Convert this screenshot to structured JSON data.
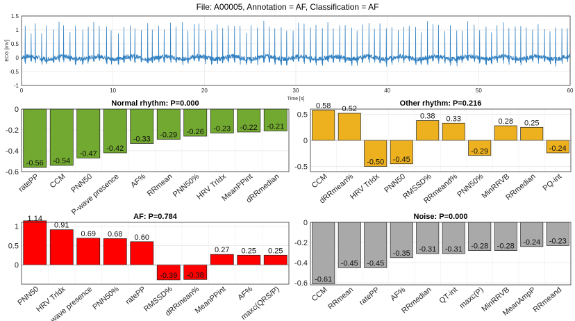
{
  "figure_title": "File: A00005, Annotation = AF, Classification = AF",
  "chart_data": [
    {
      "id": "ecg",
      "type": "line",
      "title": "",
      "xlabel": "Time [s]",
      "ylabel": "ECG [mV]",
      "xlim": [
        0,
        60
      ],
      "ylim": [
        -1,
        1.5
      ],
      "xticks": [
        0,
        10,
        20,
        30,
        40,
        50,
        60
      ],
      "yticks": [
        -1,
        -0.5,
        0,
        0.5,
        1,
        1.5
      ],
      "ytick_labels": [
        "-1",
        "-0.5",
        "0",
        "0.5",
        "1",
        "1.5"
      ],
      "grid": true,
      "color": "#2f7fc1",
      "series": [
        {
          "name": "ECG",
          "beat_times": [
            0.4,
            1.05,
            1.5,
            2.2,
            2.7,
            3.5,
            4.1,
            4.6,
            5.3,
            5.9,
            6.7,
            7.3,
            7.9,
            8.5,
            9.3,
            9.8,
            10.6,
            11.2,
            11.9,
            12.4,
            13.1,
            13.8,
            14.3,
            15.0,
            15.6,
            16.3,
            16.9,
            17.6,
            18.2,
            18.9,
            19.4,
            20.1,
            20.8,
            21.4,
            22.0,
            22.6,
            23.3,
            23.9,
            24.6,
            25.1,
            25.8,
            26.5,
            27.1,
            27.7,
            28.4,
            29.0,
            29.7,
            30.3,
            30.9,
            31.6,
            32.2,
            32.9,
            33.5,
            34.1,
            34.8,
            35.4,
            36.1,
            36.7,
            37.3,
            38.0,
            38.6,
            39.2,
            39.9,
            40.5,
            41.2,
            41.8,
            42.4,
            43.1,
            43.7,
            44.4,
            45.0,
            45.6,
            46.3,
            46.9,
            47.6,
            48.2,
            48.8,
            49.5,
            50.1,
            50.8,
            51.4,
            52.0,
            52.7,
            53.3,
            54.0,
            54.6,
            55.2,
            55.9,
            56.5,
            57.2,
            57.8,
            58.4,
            59.1,
            59.7
          ],
          "peak_amplitudes": [
            1.1,
            0.9,
            1.15,
            0.95,
            1.2,
            1.05,
            1.25,
            1.1,
            0.95,
            1.2,
            1.0,
            1.15,
            1.3,
            1.05,
            1.2,
            1.1,
            0.95,
            1.15,
            1.2,
            1.0,
            1.1,
            1.25,
            1.05,
            1.15,
            1.0,
            1.2,
            1.1,
            1.3,
            1.05,
            1.15,
            1.2,
            1.0,
            1.1,
            1.25,
            1.05,
            1.2,
            1.1,
            1.15,
            1.0,
            1.2,
            1.1,
            1.25,
            1.05,
            1.15,
            1.2,
            1.1,
            1.0,
            1.2,
            1.15,
            1.05,
            1.2,
            1.1,
            1.25,
            1.0,
            1.15,
            1.2,
            1.1,
            1.05,
            1.2,
            1.15,
            1.1,
            1.25,
            1.05,
            1.2,
            1.0,
            1.15,
            1.1,
            1.2,
            1.05,
            1.25,
            1.1,
            1.15,
            1.0,
            1.2,
            1.1,
            1.05,
            1.25,
            1.15,
            1.1,
            1.2,
            1.0,
            1.15,
            1.2,
            1.05,
            1.1,
            1.25,
            1.15,
            1.0,
            1.2,
            1.1,
            1.05,
            1.2,
            1.15,
            1.1
          ],
          "baseline": 0.0
        }
      ]
    },
    {
      "id": "normal",
      "type": "bar",
      "title": "Normal rhythm: P=0.000",
      "color": "#72a930",
      "ylim": [
        -0.6,
        0
      ],
      "yticks": [
        -0.6,
        -0.4,
        -0.2,
        0
      ],
      "ytick_labels": [
        "-0.6",
        "-0.4",
        "-0.2",
        "0"
      ],
      "grid": true,
      "categories": [
        "ratePP",
        "CCM",
        "PNN50",
        "P-wave presence",
        "AF%",
        "RRmean",
        "PNN50%",
        "HRV TrIdx",
        "MeanPPint",
        "dRRmedian"
      ],
      "values": [
        -0.56,
        -0.54,
        -0.47,
        -0.42,
        -0.33,
        -0.29,
        -0.26,
        -0.23,
        -0.22,
        -0.21
      ],
      "value_labels": [
        "-0.56",
        "-0.54",
        "-0.47",
        "-0.42",
        "-0.33",
        "-0.29",
        "-0.26",
        "-0.23",
        "-0.22",
        "-0.21"
      ]
    },
    {
      "id": "other",
      "type": "bar",
      "title": "Other rhythm: P=0.216",
      "color": "#edb120",
      "ylim": [
        -0.6,
        0.6
      ],
      "yticks": [
        -0.5,
        0,
        0.5
      ],
      "ytick_labels": [
        "-0.5",
        "0",
        "0.5"
      ],
      "grid": true,
      "categories": [
        "CCM",
        "dRRmean%",
        "HRV TrIdx",
        "PNN50",
        "RMSSD%",
        "RRmeand%",
        "PNN50%",
        "MinRRVB",
        "RRmedian",
        "PQ-int"
      ],
      "values": [
        0.58,
        0.52,
        -0.5,
        -0.45,
        0.38,
        0.33,
        -0.29,
        0.28,
        0.25,
        -0.24
      ],
      "value_labels": [
        "0.58",
        "0.52",
        "-0.50",
        "-0.45",
        "0.38",
        "0.33",
        "-0.29",
        "0.28",
        "0.25",
        "-0.24"
      ]
    },
    {
      "id": "af",
      "type": "bar",
      "title": "AF: P=0.784",
      "color": "#ff0000",
      "ylim": [
        -0.5,
        1.1
      ],
      "yticks": [
        0,
        0.5,
        1
      ],
      "ytick_labels": [
        "0",
        "0.5",
        "1"
      ],
      "grid": true,
      "categories": [
        "PNN50",
        "HRV TrIdx",
        "P-wave presence",
        "PNN50%",
        "ratePP",
        "RMSSD%",
        "dRRmean%",
        "MeanPPint",
        "AF%",
        "maxc(QRS/P)"
      ],
      "values": [
        1.14,
        0.91,
        0.69,
        0.68,
        0.6,
        -0.39,
        -0.38,
        0.27,
        0.25,
        0.25
      ],
      "value_labels": [
        "1.14",
        "0.91",
        "0.69",
        "0.68",
        "0.60",
        "-0.39",
        "-0.38",
        "0.27",
        "0.25",
        "0.25"
      ]
    },
    {
      "id": "noise",
      "type": "bar",
      "title": "Noise: P=0.000",
      "color": "#a9a9a9",
      "ylim": [
        -0.62,
        0
      ],
      "yticks": [
        -0.6,
        -0.4,
        -0.2,
        0
      ],
      "ytick_labels": [
        "-0.6",
        "-0.4",
        "-0.2",
        "0"
      ],
      "grid": true,
      "categories": [
        "CCM",
        "RRmean",
        "ratePP",
        "AF%",
        "RRmedian",
        "QT-int",
        "maxc(P)",
        "MinRRVB",
        "MeanAmpP",
        "RRmeand"
      ],
      "values": [
        -0.61,
        -0.45,
        -0.45,
        -0.35,
        -0.31,
        -0.31,
        -0.28,
        -0.28,
        -0.24,
        -0.23
      ],
      "value_labels": [
        "-0.61",
        "-0.45",
        "-0.45",
        "-0.35",
        "-0.31",
        "-0.31",
        "-0.28",
        "-0.28",
        "-0.24",
        "-0.23"
      ]
    }
  ]
}
